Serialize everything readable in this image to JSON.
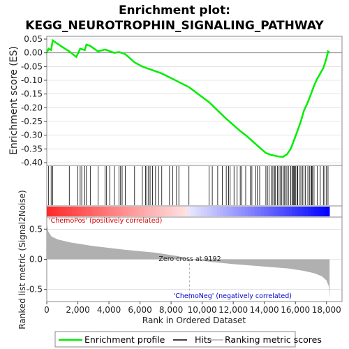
{
  "chart_data": {
    "type": "line",
    "title_line1": "Enrichment plot:",
    "title_line2": "KEGG_NEUROTROPHIN_SIGNALING_PATHWAY",
    "es_ylabel": "Enrichment score (ES)",
    "metric_ylabel": "Ranked list metric (Signal2Noise)",
    "xlabel": "Rank in Ordered Dataset",
    "xlim": [
      0,
      19000
    ],
    "es_ylim": [
      -0.4,
      0.05
    ],
    "es_yticks": [
      "0.05",
      "0.00",
      "-0.05",
      "-0.10",
      "-0.15",
      "-0.20",
      "-0.25",
      "-0.30",
      "-0.35",
      "-0.40"
    ],
    "metric_ylim": [
      -0.7,
      0.7
    ],
    "metric_yticks": [
      "0.5",
      "0.0",
      "-0.5"
    ],
    "xticks": [
      "0",
      "2,000",
      "4,000",
      "6,000",
      "8,000",
      "10,000",
      "12,000",
      "14,000",
      "16,000",
      "18,000"
    ],
    "n_genes": 18200,
    "zero_cross": 9192,
    "zero_cross_label": "Zero cross at 9192",
    "pos_label": "'ChemoPos' (positively correlated)",
    "neg_label": "'ChemoNeg' (negatively correlated)",
    "hits": [
      120,
      280,
      380,
      1450,
      2000,
      2150,
      2250,
      2450,
      2550,
      2800,
      3300,
      3750,
      3850,
      4050,
      4350,
      4650,
      4750,
      4850,
      5050,
      5650,
      6150,
      6350,
      6450,
      6550,
      6650,
      6800,
      7000,
      7200,
      7400,
      7900,
      8100,
      8350,
      8500,
      9150,
      10450,
      10650,
      11000,
      11300,
      11550,
      11700,
      11800,
      12050,
      12250,
      12450,
      12550,
      12800,
      13100,
      13200,
      13450,
      13550,
      13700,
      14100,
      14200,
      14300,
      14450,
      14550,
      14650,
      14700,
      14850,
      14950,
      15050,
      15100,
      15200,
      15280,
      15350,
      15450,
      15550,
      15700,
      15780,
      15850,
      15900,
      15950,
      16000,
      16100,
      16150,
      16250,
      16350,
      16450,
      16550,
      16650,
      16800,
      16900,
      17000,
      17050,
      17100,
      17200,
      17400,
      17600,
      17800,
      17900,
      18000,
      18100
    ],
    "es_profile": [
      [
        0,
        0.0
      ],
      [
        120,
        0.015
      ],
      [
        280,
        0.01
      ],
      [
        380,
        0.045
      ],
      [
        900,
        0.025
      ],
      [
        1450,
        0.005
      ],
      [
        1900,
        -0.015
      ],
      [
        2150,
        0.015
      ],
      [
        2450,
        0.01
      ],
      [
        2550,
        0.03
      ],
      [
        2800,
        0.025
      ],
      [
        3300,
        0.005
      ],
      [
        3750,
        0.012
      ],
      [
        3850,
        0.01
      ],
      [
        4350,
        0.0
      ],
      [
        4650,
        0.003
      ],
      [
        5050,
        -0.005
      ],
      [
        5650,
        -0.035
      ],
      [
        6150,
        -0.05
      ],
      [
        6650,
        -0.06
      ],
      [
        7400,
        -0.075
      ],
      [
        8100,
        -0.095
      ],
      [
        9150,
        -0.125
      ],
      [
        10450,
        -0.18
      ],
      [
        11000,
        -0.21
      ],
      [
        11550,
        -0.24
      ],
      [
        12050,
        -0.265
      ],
      [
        12450,
        -0.285
      ],
      [
        12800,
        -0.3
      ],
      [
        13200,
        -0.32
      ],
      [
        13700,
        -0.345
      ],
      [
        14100,
        -0.365
      ],
      [
        14450,
        -0.372
      ],
      [
        14700,
        -0.375
      ],
      [
        14950,
        -0.378
      ],
      [
        15200,
        -0.379
      ],
      [
        15450,
        -0.37
      ],
      [
        15700,
        -0.35
      ],
      [
        15900,
        -0.32
      ],
      [
        16100,
        -0.29
      ],
      [
        16350,
        -0.25
      ],
      [
        16550,
        -0.21
      ],
      [
        16800,
        -0.18
      ],
      [
        17000,
        -0.15
      ],
      [
        17200,
        -0.12
      ],
      [
        17400,
        -0.095
      ],
      [
        17600,
        -0.075
      ],
      [
        17800,
        -0.055
      ],
      [
        18000,
        -0.02
      ],
      [
        18100,
        0.005
      ],
      [
        18200,
        0.0
      ]
    ],
    "metric_profile": [
      [
        0,
        0.62
      ],
      [
        100,
        0.46
      ],
      [
        300,
        0.38
      ],
      [
        700,
        0.33
      ],
      [
        1500,
        0.28
      ],
      [
        3000,
        0.22
      ],
      [
        5000,
        0.16
      ],
      [
        7000,
        0.11
      ],
      [
        8500,
        0.05
      ],
      [
        9192,
        0.0
      ],
      [
        10500,
        -0.04
      ],
      [
        12000,
        -0.08
      ],
      [
        14000,
        -0.12
      ],
      [
        15500,
        -0.15
      ],
      [
        16500,
        -0.19
      ],
      [
        17200,
        -0.23
      ],
      [
        17700,
        -0.28
      ],
      [
        18000,
        -0.35
      ],
      [
        18150,
        -0.45
      ],
      [
        18200,
        -0.65
      ]
    ],
    "colors": {
      "es_line": "#00ee00",
      "hits": "#000000",
      "metric_fill": "#b0b0b0",
      "pos": "#ff0000",
      "neg": "#0000ff",
      "zero_line": "#888888",
      "grid": "#d0d0d0"
    }
  },
  "legend": {
    "items": [
      {
        "label": "Enrichment profile",
        "color": "#00ee00"
      },
      {
        "label": "Hits",
        "color": "#000000"
      },
      {
        "label": "Ranking metric scores",
        "color": "#b0b0b0"
      }
    ]
  }
}
